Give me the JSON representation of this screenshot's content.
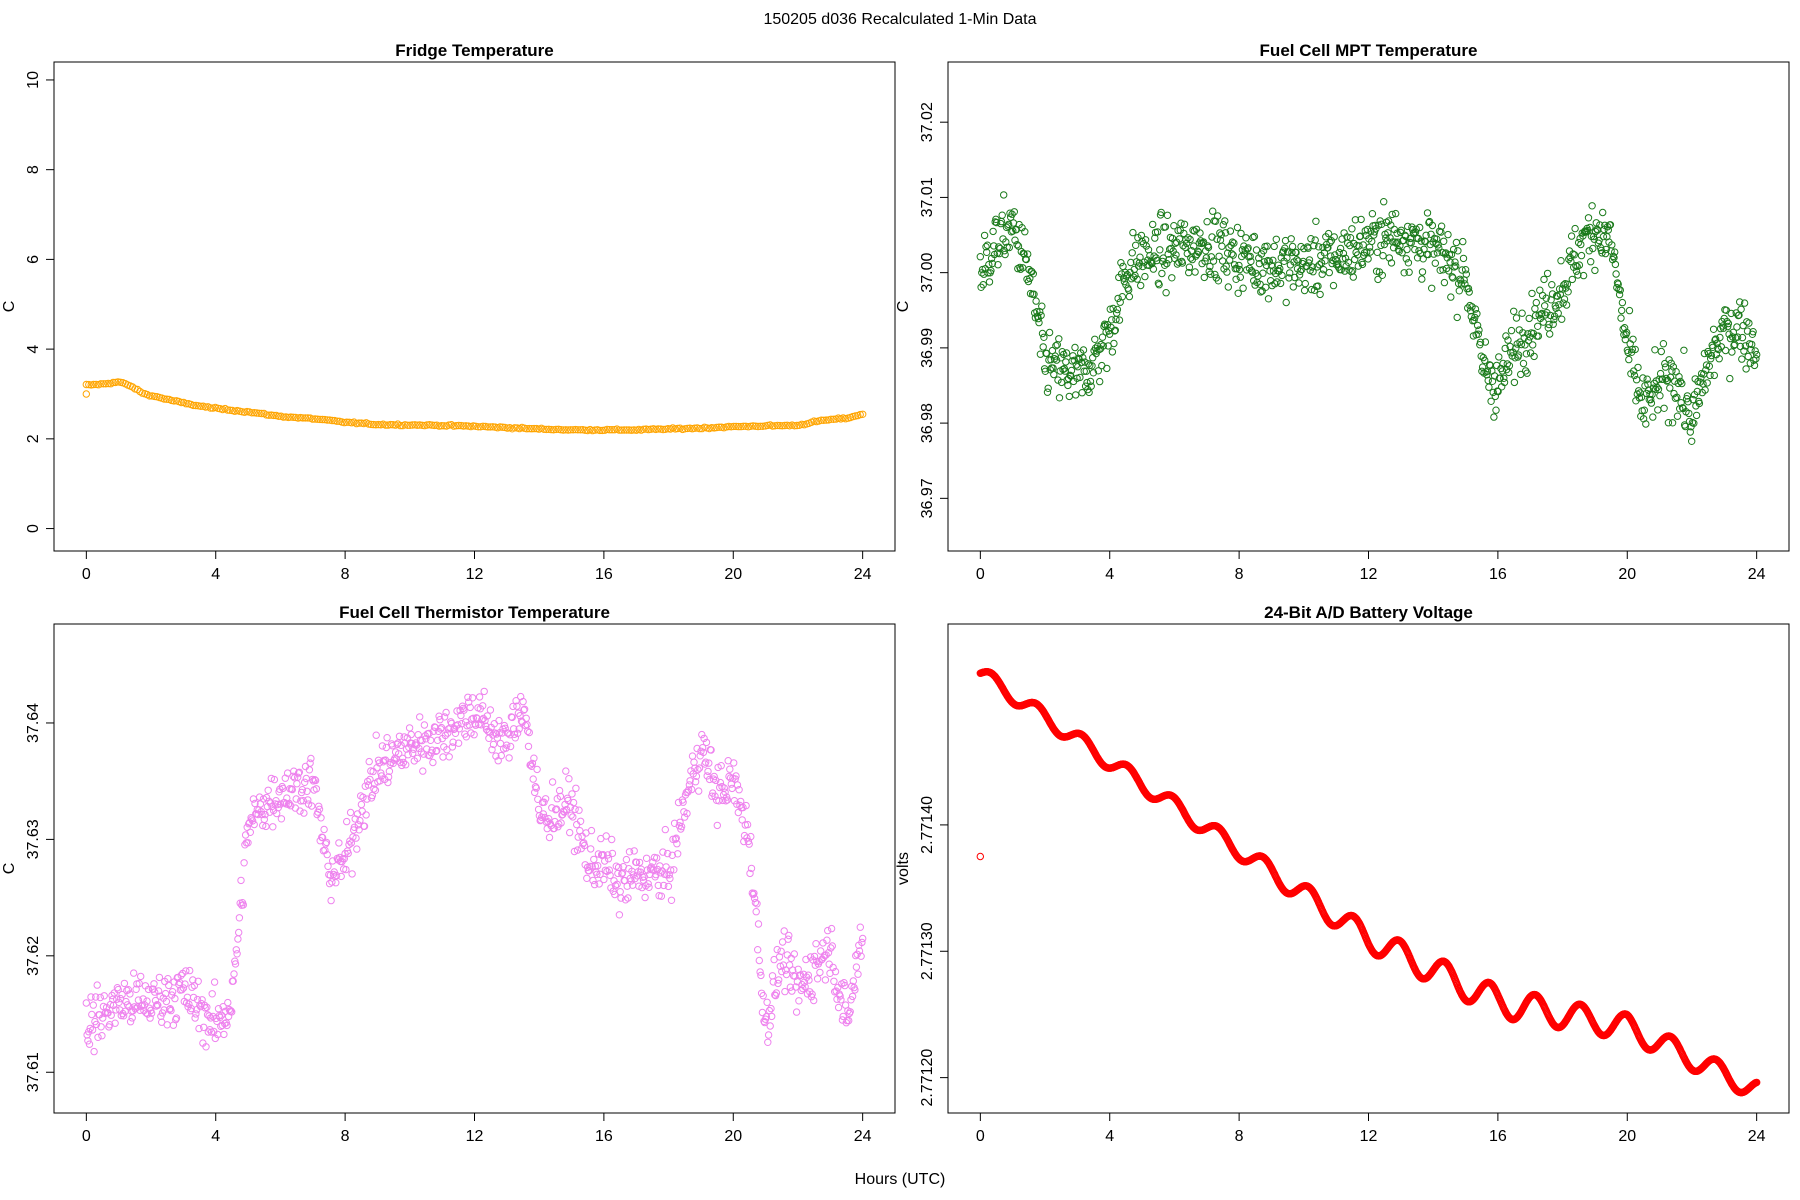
{
  "figure": {
    "super_title": "150205   d036   Recalculated 1-Min Data",
    "xlabel": "Hours (UTC)"
  },
  "chart_data": [
    {
      "type": "scatter",
      "title": "Fridge Temperature",
      "ylabel": "C",
      "xlabel": "",
      "xlim": [
        -1,
        25
      ],
      "ylim": [
        -0.5,
        10.4
      ],
      "xticks": [
        0,
        4,
        8,
        12,
        16,
        20,
        24
      ],
      "yticks": [
        0,
        2,
        4,
        6,
        8,
        10
      ],
      "ytick_labels": [
        "0",
        "2",
        "4",
        "6",
        "8",
        "10"
      ],
      "color": "#FFA500",
      "points": [
        [
          0,
          3.0
        ]
      ],
      "curve": [
        [
          0.05,
          3.2
        ],
        [
          0.5,
          3.22
        ],
        [
          1.0,
          3.27
        ],
        [
          1.3,
          3.2
        ],
        [
          1.8,
          3.0
        ],
        [
          2.5,
          2.88
        ],
        [
          3.0,
          2.8
        ],
        [
          3.5,
          2.73
        ],
        [
          4.0,
          2.68
        ],
        [
          5.0,
          2.6
        ],
        [
          6.0,
          2.5
        ],
        [
          7.0,
          2.45
        ],
        [
          8.0,
          2.37
        ],
        [
          9.0,
          2.32
        ],
        [
          10.0,
          2.31
        ],
        [
          11.0,
          2.3
        ],
        [
          12.0,
          2.28
        ],
        [
          13.0,
          2.25
        ],
        [
          14.0,
          2.22
        ],
        [
          15.0,
          2.2
        ],
        [
          16.0,
          2.2
        ],
        [
          17.0,
          2.2
        ],
        [
          18.0,
          2.22
        ],
        [
          19.0,
          2.24
        ],
        [
          20.0,
          2.27
        ],
        [
          21.0,
          2.29
        ],
        [
          22.0,
          2.3
        ],
        [
          22.5,
          2.38
        ],
        [
          23.0,
          2.43
        ],
        [
          23.5,
          2.46
        ],
        [
          24.0,
          2.55
        ]
      ],
      "jitter": 0.03,
      "n_points": 320
    },
    {
      "type": "scatter",
      "title": "Fuel Cell MPT Temperature",
      "ylabel": "C",
      "xlabel": "",
      "xlim": [
        -1,
        25
      ],
      "ylim": [
        36.963,
        37.028
      ],
      "xticks": [
        0,
        4,
        8,
        12,
        16,
        20,
        24
      ],
      "yticks": [
        36.97,
        36.98,
        36.99,
        37.0,
        37.01,
        37.02
      ],
      "ytick_labels": [
        "36.97",
        "36.98",
        "36.99",
        "37.00",
        "37.01",
        "37.02"
      ],
      "color": "#1A7A1A",
      "curve": [
        [
          0,
          37.0
        ],
        [
          0.5,
          37.004
        ],
        [
          1.0,
          37.006
        ],
        [
          1.5,
          37.0
        ],
        [
          2.0,
          36.988
        ],
        [
          2.5,
          36.987
        ],
        [
          3.0,
          36.986
        ],
        [
          3.5,
          36.988
        ],
        [
          4.0,
          36.992
        ],
        [
          4.5,
          37.0
        ],
        [
          5.0,
          37.002
        ],
        [
          6.0,
          37.003
        ],
        [
          7.0,
          37.004
        ],
        [
          8.0,
          37.002
        ],
        [
          9.0,
          37.001
        ],
        [
          10.0,
          37.001
        ],
        [
          11.0,
          37.002
        ],
        [
          12.0,
          37.004
        ],
        [
          13.0,
          37.005
        ],
        [
          14.0,
          37.003
        ],
        [
          15.0,
          37.0
        ],
        [
          15.5,
          36.988
        ],
        [
          16.0,
          36.985
        ],
        [
          16.5,
          36.99
        ],
        [
          17.0,
          36.993
        ],
        [
          18.0,
          36.998
        ],
        [
          18.5,
          37.003
        ],
        [
          19.0,
          37.006
        ],
        [
          19.5,
          37.004
        ],
        [
          20.0,
          36.99
        ],
        [
          20.5,
          36.982
        ],
        [
          21.0,
          36.985
        ],
        [
          21.5,
          36.986
        ],
        [
          22.0,
          36.98
        ],
        [
          22.5,
          36.988
        ],
        [
          23.0,
          36.992
        ],
        [
          23.5,
          36.993
        ],
        [
          24.0,
          36.99
        ]
      ],
      "jitter": 0.008,
      "n_points": 1100
    },
    {
      "type": "scatter",
      "title": "Fuel Cell Thermistor Temperature",
      "ylabel": "C",
      "xlabel": "",
      "xlim": [
        -1,
        25
      ],
      "ylim": [
        37.6065,
        37.6485
      ],
      "xticks": [
        0,
        4,
        8,
        12,
        16,
        20,
        24
      ],
      "yticks": [
        37.61,
        37.62,
        37.63,
        37.64
      ],
      "ytick_labels": [
        "37.61",
        "37.62",
        "37.63",
        "37.64"
      ],
      "color": "#EE82EE",
      "curve": [
        [
          0,
          37.614
        ],
        [
          1.0,
          37.616
        ],
        [
          2.0,
          37.616
        ],
        [
          3.0,
          37.617
        ],
        [
          4.0,
          37.614
        ],
        [
          4.5,
          37.616
        ],
        [
          5.0,
          37.631
        ],
        [
          5.5,
          37.633
        ],
        [
          6.0,
          37.634
        ],
        [
          7.0,
          37.635
        ],
        [
          7.5,
          37.627
        ],
        [
          8.0,
          37.628
        ],
        [
          8.5,
          37.633
        ],
        [
          9.0,
          37.636
        ],
        [
          10.0,
          37.638
        ],
        [
          11.0,
          37.639
        ],
        [
          11.5,
          37.64
        ],
        [
          12.0,
          37.641
        ],
        [
          13.0,
          37.638
        ],
        [
          13.5,
          37.642
        ],
        [
          14.0,
          37.632
        ],
        [
          15.0,
          37.633
        ],
        [
          15.5,
          37.628
        ],
        [
          16.0,
          37.628
        ],
        [
          16.5,
          37.626
        ],
        [
          17.0,
          37.627
        ],
        [
          18.0,
          37.627
        ],
        [
          18.5,
          37.633
        ],
        [
          19.0,
          37.638
        ],
        [
          19.5,
          37.634
        ],
        [
          20.0,
          37.635
        ],
        [
          20.5,
          37.63
        ],
        [
          21.0,
          37.614
        ],
        [
          21.5,
          37.62
        ],
        [
          22.0,
          37.617
        ],
        [
          23.0,
          37.621
        ],
        [
          23.5,
          37.614
        ],
        [
          24.0,
          37.622
        ]
      ],
      "jitter": 0.0045,
      "n_points": 1000
    },
    {
      "type": "scatter",
      "title": "24-Bit A/D Battery Voltage",
      "ylabel": "volts",
      "xlabel": "",
      "xlim": [
        -1,
        25
      ],
      "ylim": [
        2.771172,
        2.771559
      ],
      "xticks": [
        0,
        4,
        8,
        12,
        16,
        20,
        24
      ],
      "yticks": [
        2.7712,
        2.7713,
        2.7714
      ],
      "ytick_labels": [
        "2.77120",
        "2.77130",
        "2.77140"
      ],
      "color": "#FF0000",
      "points": [
        [
          0,
          2.771375
        ]
      ],
      "curve_trend": [
        [
          0,
          2.77152
        ],
        [
          4,
          2.77145
        ],
        [
          8,
          2.77138
        ],
        [
          12,
          2.77131
        ],
        [
          16,
          2.77126
        ],
        [
          20,
          2.77124
        ],
        [
          24,
          2.77119
        ]
      ],
      "oscillation_amplitude": [
        [
          0,
          6e-06
        ],
        [
          8,
          7e-06
        ],
        [
          12,
          1e-05
        ],
        [
          16,
          1.2e-05
        ],
        [
          24,
          8e-06
        ]
      ],
      "oscillation_period_hours": 1.4,
      "n_points": 1440
    }
  ]
}
